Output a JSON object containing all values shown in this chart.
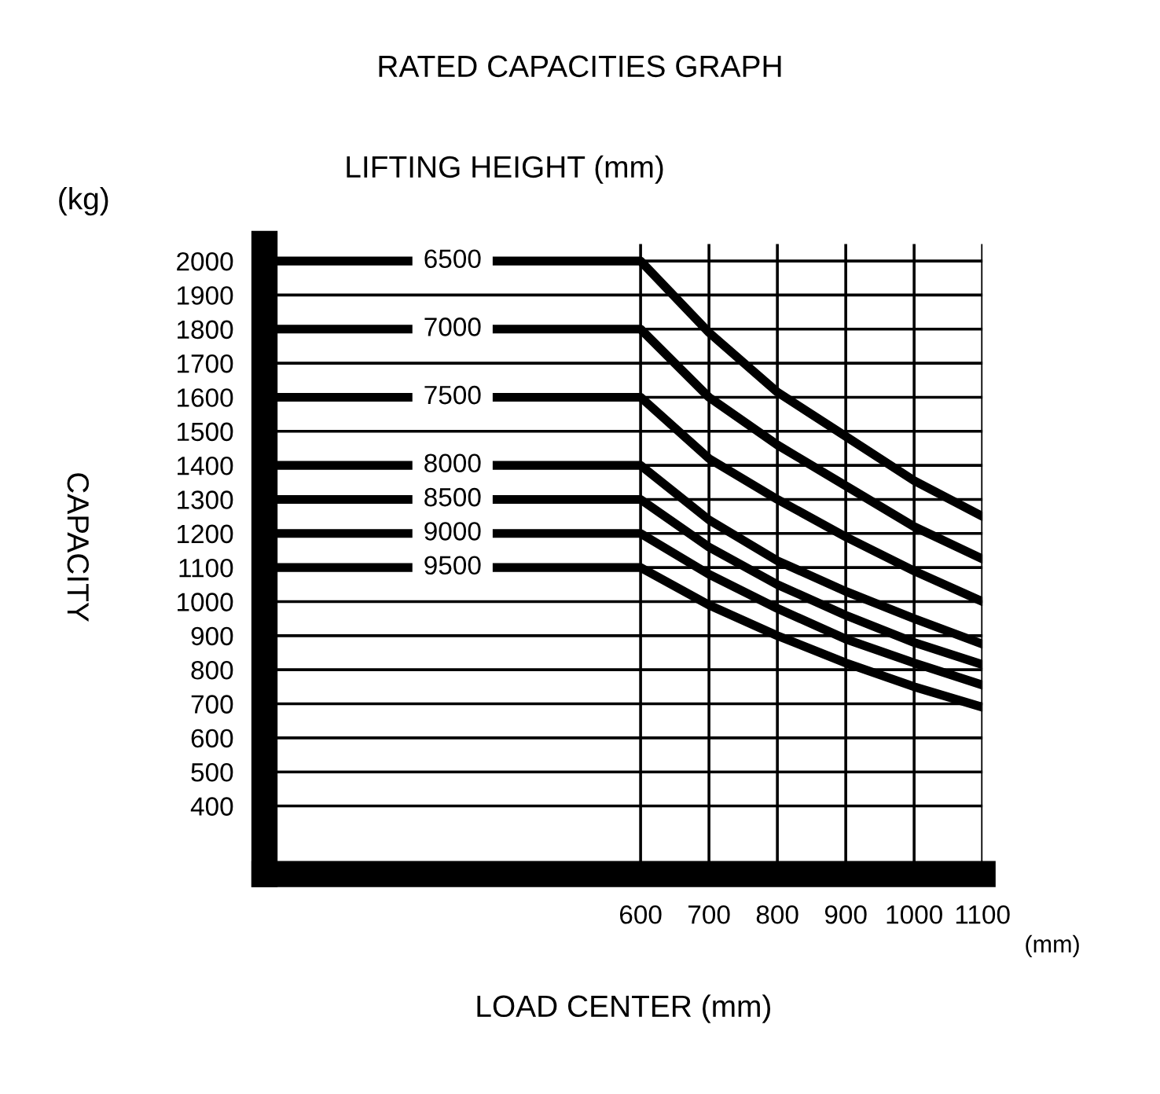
{
  "chart_data": {
    "type": "line",
    "title": "RATED CAPACITIES GRAPH",
    "subtitle": "LIFTING HEIGHT (mm)",
    "xlabel": "LOAD CENTER (mm)",
    "ylabel": "CAPACITY",
    "annotations": [
      "(kg)",
      "(mm)"
    ],
    "x": [
      50,
      600,
      700,
      800,
      900,
      1000,
      1100
    ],
    "series": [
      {
        "name": "6500",
        "color": "#000000",
        "values": [
          2000,
          2000,
          1790,
          1615,
          1485,
          1355,
          1250
        ]
      },
      {
        "name": "7000",
        "color": "#000000",
        "values": [
          1800,
          1800,
          1600,
          1460,
          1340,
          1220,
          1125
        ]
      },
      {
        "name": "7500",
        "color": "#000000",
        "values": [
          1600,
          1600,
          1420,
          1300,
          1190,
          1090,
          1000
        ]
      },
      {
        "name": "8000",
        "color": "#000000",
        "values": [
          1400,
          1400,
          1240,
          1120,
          1030,
          950,
          875
        ]
      },
      {
        "name": "8500",
        "color": "#000000",
        "values": [
          1300,
          1300,
          1160,
          1050,
          960,
          880,
          815
        ]
      },
      {
        "name": "9000",
        "color": "#000000",
        "values": [
          1200,
          1200,
          1080,
          980,
          890,
          820,
          755
        ]
      },
      {
        "name": "9500",
        "color": "#000000",
        "values": [
          1100,
          1100,
          990,
          900,
          820,
          750,
          690
        ]
      }
    ],
    "xlim": [
      50,
      1100
    ],
    "ylim": [
      200,
      2050
    ],
    "xticks": [
      600,
      700,
      800,
      900,
      1000,
      1100
    ],
    "yticks": [
      400,
      500,
      600,
      700,
      800,
      900,
      1000,
      1100,
      1200,
      1300,
      1400,
      1500,
      1600,
      1700,
      1800,
      1900,
      2000
    ],
    "grid": true,
    "legend": false,
    "marker": "none",
    "line_style": "solid"
  }
}
